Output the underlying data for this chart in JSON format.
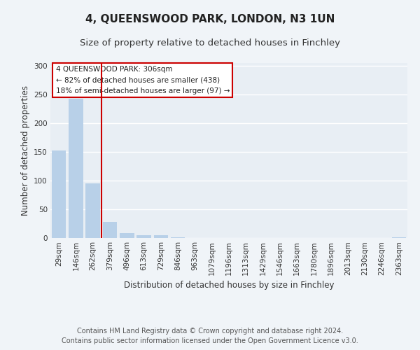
{
  "title": "4, QUEENSWOOD PARK, LONDON, N3 1UN",
  "subtitle": "Size of property relative to detached houses in Finchley",
  "xlabel": "Distribution of detached houses by size in Finchley",
  "ylabel": "Number of detached properties",
  "bar_labels": [
    "29sqm",
    "146sqm",
    "262sqm",
    "379sqm",
    "496sqm",
    "613sqm",
    "729sqm",
    "846sqm",
    "963sqm",
    "1079sqm",
    "1196sqm",
    "1313sqm",
    "1429sqm",
    "1546sqm",
    "1663sqm",
    "1780sqm",
    "1896sqm",
    "2013sqm",
    "2130sqm",
    "2246sqm",
    "2363sqm"
  ],
  "bar_heights": [
    153,
    243,
    95,
    28,
    9,
    5,
    5,
    1,
    0,
    0,
    0,
    0,
    0,
    0,
    0,
    0,
    0,
    0,
    0,
    0,
    1
  ],
  "bar_color": "#b8d0e8",
  "vline_color": "#cc0000",
  "annotation_title": "4 QUEENSWOOD PARK: 306sqm",
  "annotation_line1": "← 82% of detached houses are smaller (438)",
  "annotation_line2": "18% of semi-detached houses are larger (97) →",
  "annotation_box_color": "#ffffff",
  "annotation_box_edge": "#cc0000",
  "ylim": [
    0,
    305
  ],
  "yticks": [
    0,
    50,
    100,
    150,
    200,
    250,
    300
  ],
  "footer1": "Contains HM Land Registry data © Crown copyright and database right 2024.",
  "footer2": "Contains public sector information licensed under the Open Government Licence v3.0.",
  "background_color": "#f0f4f8",
  "plot_bg_color": "#e8eef4",
  "grid_color": "#ffffff",
  "title_fontsize": 11,
  "subtitle_fontsize": 9.5,
  "axis_label_fontsize": 8.5,
  "tick_fontsize": 7.5,
  "footer_fontsize": 7,
  "annot_fontsize": 7.5
}
